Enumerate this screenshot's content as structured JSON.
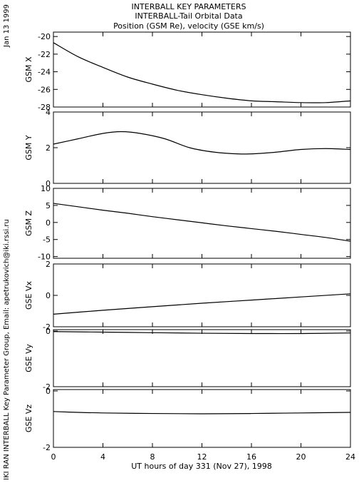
{
  "header": {
    "title1": "INTERBALL KEY PARAMETERS",
    "title2": "INTERBALL-Tail Orbital Data",
    "title3": "Position (GSM Re), velocity (GSE km/s)"
  },
  "side": {
    "date": "Jan 13 1999",
    "credit": "IKI RAN INTERBALL Key Parameter Group, Email: apetrukovich@iki.rssi.ru"
  },
  "chart_data": {
    "type": "line",
    "xlabel": "UT hours of day 331 (Nov 27), 1998",
    "xlim": [
      0,
      24
    ],
    "xticks": [
      "0",
      "4",
      "8",
      "12",
      "16",
      "20",
      "24"
    ],
    "panels": [
      {
        "ylabel": "GSM X",
        "ylim": [
          -28,
          -19.5
        ],
        "yticks": [
          -20,
          -22,
          -24,
          -26,
          -28
        ],
        "x": [
          0,
          2,
          4,
          6,
          8,
          10,
          12,
          14,
          16,
          18,
          20,
          22,
          24
        ],
        "y": [
          -20.7,
          -22.3,
          -23.5,
          -24.6,
          -25.4,
          -26.1,
          -26.6,
          -27.0,
          -27.3,
          -27.4,
          -27.5,
          -27.5,
          -27.3
        ]
      },
      {
        "ylabel": "GSM Y",
        "ylim": [
          0,
          4
        ],
        "yticks": [
          0,
          2,
          4
        ],
        "x": [
          0,
          2,
          4,
          5.5,
          7,
          9,
          11,
          13,
          15,
          16.5,
          18,
          20,
          22,
          24
        ],
        "y": [
          2.2,
          2.5,
          2.8,
          2.9,
          2.8,
          2.5,
          2.0,
          1.75,
          1.65,
          1.67,
          1.75,
          1.9,
          1.95,
          1.9
        ]
      },
      {
        "ylabel": "GSM Z",
        "ylim": [
          -10.5,
          10
        ],
        "yticks": [
          10,
          5,
          0,
          -5,
          -10
        ],
        "x": [
          0,
          2,
          4,
          6,
          8,
          10,
          12,
          14,
          16,
          18,
          20,
          22,
          24
        ],
        "y": [
          5.6,
          4.6,
          3.6,
          2.7,
          1.7,
          0.8,
          -0.1,
          -1.0,
          -1.8,
          -2.6,
          -3.5,
          -4.4,
          -5.5
        ]
      },
      {
        "ylabel": "GSE Vx",
        "ylim": [
          -2,
          2
        ],
        "yticks": [
          2,
          0,
          -2
        ],
        "x": [
          0,
          4,
          8,
          12,
          16,
          20,
          24
        ],
        "y": [
          -1.2,
          -0.95,
          -0.72,
          -0.5,
          -0.3,
          -0.1,
          0.1
        ]
      },
      {
        "ylabel": "GSE Vy",
        "ylim": [
          -2,
          0.05
        ],
        "yticks": [
          0,
          -2
        ],
        "x": [
          0,
          4,
          8,
          12,
          16,
          20,
          24
        ],
        "y": [
          -0.02,
          -0.04,
          -0.06,
          -0.08,
          -0.09,
          -0.09,
          -0.07
        ]
      },
      {
        "ylabel": "GSE Vz",
        "ylim": [
          -2,
          0.05
        ],
        "yticks": [
          0,
          -2
        ],
        "x": [
          0,
          2,
          4,
          8,
          12,
          16,
          20,
          24
        ],
        "y": [
          -0.73,
          -0.76,
          -0.78,
          -0.8,
          -0.81,
          -0.8,
          -0.78,
          -0.76
        ]
      }
    ]
  }
}
